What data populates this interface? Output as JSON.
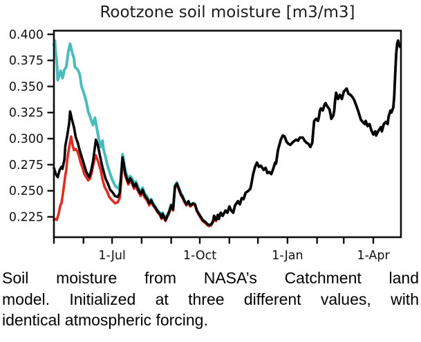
{
  "chart_data": {
    "type": "line",
    "title": "Rootzone soil moisture [m3/m3]",
    "xlabel": "",
    "ylabel": "",
    "grid": false,
    "legend_position": "none",
    "x_axis": {
      "unit": "days since 1-May",
      "domain_days": [
        0,
        364
      ],
      "tick_days": [
        0,
        31,
        61,
        92,
        123,
        153,
        184,
        214,
        245,
        276,
        304,
        335
      ],
      "labeled_ticks": [
        {
          "day": 61,
          "label": "1-Jul"
        },
        {
          "day": 153,
          "label": "1-Oct"
        },
        {
          "day": 245,
          "label": "1-Jan"
        },
        {
          "day": 335,
          "label": "1-Apr"
        }
      ]
    },
    "y_axis": {
      "unit": "m3/m3",
      "range": [
        0.2055,
        0.4035
      ],
      "ticks": [
        0.225,
        0.25,
        0.275,
        0.3,
        0.325,
        0.35,
        0.375,
        0.4
      ],
      "tick_labels": [
        "0.225",
        "0.250",
        "0.275",
        "0.300",
        "0.325",
        "0.350",
        "0.375",
        "0.400"
      ]
    },
    "series": [
      {
        "id": "teal",
        "color": "#49bdbb",
        "width": 4,
        "points": [
          [
            0,
            0.39
          ],
          [
            1,
            0.394
          ],
          [
            2,
            0.381
          ],
          [
            3,
            0.374
          ],
          [
            4,
            0.356
          ],
          [
            6,
            0.362
          ],
          [
            7,
            0.365
          ],
          [
            9,
            0.358
          ],
          [
            11,
            0.366
          ],
          [
            13,
            0.369
          ],
          [
            15,
            0.383
          ],
          [
            17,
            0.391
          ],
          [
            19,
            0.383
          ],
          [
            21,
            0.377
          ],
          [
            22,
            0.369
          ],
          [
            25,
            0.366
          ],
          [
            27,
            0.362
          ],
          [
            29,
            0.35
          ],
          [
            32,
            0.342
          ],
          [
            34,
            0.335
          ],
          [
            36,
            0.326
          ],
          [
            39,
            0.318
          ],
          [
            41,
            0.313
          ],
          [
            43,
            0.32
          ],
          [
            45,
            0.31
          ],
          [
            47,
            0.3
          ],
          [
            49,
            0.292
          ],
          [
            51,
            0.298
          ],
          [
            52,
            0.29
          ],
          [
            54,
            0.283
          ],
          [
            56,
            0.275
          ],
          [
            58,
            0.269
          ],
          [
            61,
            0.261
          ],
          [
            63,
            0.257
          ],
          [
            65,
            0.254
          ],
          [
            68,
            0.252
          ],
          [
            70,
            0.26
          ],
          [
            72,
            0.285
          ],
          [
            73,
            0.28
          ],
          [
            75,
            0.269
          ],
          [
            78,
            0.261
          ],
          [
            80,
            0.264
          ],
          [
            82,
            0.262
          ],
          [
            84,
            0.257
          ],
          [
            86,
            0.259
          ],
          [
            88,
            0.254
          ],
          [
            91,
            0.249
          ],
          [
            93,
            0.253
          ],
          [
            95,
            0.248
          ],
          [
            98,
            0.244
          ],
          [
            100,
            0.24
          ]
        ],
        "follows": "black",
        "follows_from_day": 102,
        "fringe_offset": 0.001,
        "fringe_until_day": 135
      },
      {
        "id": "red",
        "color": "#e02b20",
        "width": 3.6,
        "points": [
          [
            0,
            0.222
          ],
          [
            2,
            0.223
          ],
          [
            3,
            0.222
          ],
          [
            5,
            0.228
          ],
          [
            6,
            0.233
          ],
          [
            7,
            0.237
          ],
          [
            8,
            0.238
          ],
          [
            10,
            0.251
          ],
          [
            12,
            0.265
          ],
          [
            13,
            0.27
          ],
          [
            14,
            0.28
          ],
          [
            16,
            0.292
          ],
          [
            18,
            0.302
          ],
          [
            20,
            0.292
          ],
          [
            21,
            0.289
          ],
          [
            23,
            0.29
          ],
          [
            25,
            0.287
          ],
          [
            27,
            0.281
          ],
          [
            28,
            0.277
          ],
          [
            30,
            0.272
          ],
          [
            32,
            0.266
          ],
          [
            34,
            0.263
          ],
          [
            36,
            0.26
          ],
          [
            38,
            0.262
          ],
          [
            40,
            0.269
          ],
          [
            42,
            0.278
          ],
          [
            44,
            0.284
          ],
          [
            46,
            0.279
          ],
          [
            49,
            0.27
          ],
          [
            51,
            0.261
          ],
          [
            53,
            0.254
          ],
          [
            56,
            0.249
          ],
          [
            58,
            0.244
          ],
          [
            61,
            0.241
          ],
          [
            64,
            0.238
          ],
          [
            67,
            0.239
          ],
          [
            69,
            0.243
          ],
          [
            70,
            0.252
          ],
          [
            72,
            0.279
          ],
          [
            73,
            0.274
          ],
          [
            75,
            0.264
          ],
          [
            78,
            0.256
          ],
          [
            80,
            0.259
          ],
          [
            82,
            0.257
          ],
          [
            84,
            0.252
          ],
          [
            86,
            0.255
          ],
          [
            88,
            0.25
          ],
          [
            91,
            0.245
          ],
          [
            93,
            0.249
          ],
          [
            95,
            0.244
          ],
          [
            98,
            0.24
          ],
          [
            100,
            0.236
          ]
        ],
        "follows": "black",
        "follows_from_day": 102,
        "fringe_offset": -0.001,
        "fringe_until_day": 170
      },
      {
        "id": "black",
        "color": "#050505",
        "width": 3.6,
        "points": [
          [
            0,
            0.272
          ],
          [
            2,
            0.266
          ],
          [
            4,
            0.263
          ],
          [
            6,
            0.27
          ],
          [
            8,
            0.273
          ],
          [
            9,
            0.271
          ],
          [
            11,
            0.28
          ],
          [
            12,
            0.293
          ],
          [
            14,
            0.303
          ],
          [
            16,
            0.315
          ],
          [
            17,
            0.326
          ],
          [
            19,
            0.318
          ],
          [
            21,
            0.311
          ],
          [
            23,
            0.301
          ],
          [
            25,
            0.296
          ],
          [
            27,
            0.289
          ],
          [
            28,
            0.286
          ],
          [
            30,
            0.28
          ],
          [
            32,
            0.274
          ],
          [
            34,
            0.268
          ],
          [
            37,
            0.263
          ],
          [
            39,
            0.269
          ],
          [
            41,
            0.278
          ],
          [
            43,
            0.292
          ],
          [
            44,
            0.299
          ],
          [
            46,
            0.294
          ],
          [
            48,
            0.285
          ],
          [
            50,
            0.276
          ],
          [
            52,
            0.269
          ],
          [
            54,
            0.262
          ],
          [
            57,
            0.256
          ],
          [
            59,
            0.251
          ],
          [
            62,
            0.248
          ],
          [
            64,
            0.245
          ],
          [
            67,
            0.244
          ],
          [
            69,
            0.248
          ],
          [
            70,
            0.258
          ],
          [
            72,
            0.282
          ],
          [
            73,
            0.277
          ],
          [
            75,
            0.266
          ],
          [
            78,
            0.258
          ],
          [
            80,
            0.262
          ],
          [
            82,
            0.259
          ],
          [
            84,
            0.254
          ],
          [
            86,
            0.257
          ],
          [
            88,
            0.252
          ],
          [
            91,
            0.247
          ],
          [
            93,
            0.251
          ],
          [
            95,
            0.246
          ],
          [
            98,
            0.242
          ],
          [
            100,
            0.238
          ],
          [
            102,
            0.241
          ],
          [
            104,
            0.237
          ],
          [
            107,
            0.233
          ],
          [
            109,
            0.23
          ],
          [
            111,
            0.228
          ],
          [
            113,
            0.224
          ],
          [
            114,
            0.228
          ],
          [
            117,
            0.222
          ],
          [
            119,
            0.226
          ],
          [
            121,
            0.23
          ],
          [
            123,
            0.236
          ],
          [
            125,
            0.232
          ],
          [
            127,
            0.254
          ],
          [
            129,
            0.257
          ],
          [
            131,
            0.252
          ],
          [
            133,
            0.247
          ],
          [
            135,
            0.244
          ],
          [
            137,
            0.24
          ],
          [
            139,
            0.237
          ],
          [
            141,
            0.24
          ],
          [
            143,
            0.236
          ],
          [
            146,
            0.238
          ],
          [
            148,
            0.237
          ],
          [
            150,
            0.231
          ],
          [
            152,
            0.228
          ],
          [
            154,
            0.225
          ],
          [
            156,
            0.222
          ],
          [
            159,
            0.22
          ],
          [
            161,
            0.218
          ],
          [
            163,
            0.217
          ],
          [
            165,
            0.218
          ],
          [
            167,
            0.221
          ],
          [
            168,
            0.226
          ],
          [
            170,
            0.222
          ],
          [
            172,
            0.227
          ],
          [
            173,
            0.223
          ],
          [
            175,
            0.229
          ],
          [
            177,
            0.226
          ],
          [
            180,
            0.231
          ],
          [
            182,
            0.229
          ],
          [
            184,
            0.235
          ],
          [
            186,
            0.231
          ],
          [
            188,
            0.229
          ],
          [
            190,
            0.236
          ],
          [
            193,
            0.24
          ],
          [
            195,
            0.237
          ],
          [
            197,
            0.243
          ],
          [
            199,
            0.242
          ],
          [
            201,
            0.248
          ],
          [
            204,
            0.25
          ],
          [
            206,
            0.252
          ],
          [
            207,
            0.256
          ],
          [
            209,
            0.266
          ],
          [
            211,
            0.273
          ],
          [
            213,
            0.277
          ],
          [
            215,
            0.273
          ],
          [
            217,
            0.274
          ],
          [
            220,
            0.27
          ],
          [
            222,
            0.272
          ],
          [
            224,
            0.267
          ],
          [
            226,
            0.268
          ],
          [
            228,
            0.266
          ],
          [
            230,
            0.271
          ],
          [
            232,
            0.277
          ],
          [
            233,
            0.276
          ],
          [
            235,
            0.289
          ],
          [
            238,
            0.299
          ],
          [
            240,
            0.303
          ],
          [
            242,
            0.302
          ],
          [
            244,
            0.297
          ],
          [
            246,
            0.295
          ],
          [
            248,
            0.294
          ],
          [
            251,
            0.297
          ],
          [
            254,
            0.299
          ],
          [
            256,
            0.298
          ],
          [
            258,
            0.301
          ],
          [
            261,
            0.301
          ],
          [
            263,
            0.298
          ],
          [
            265,
            0.296
          ],
          [
            267,
            0.295
          ],
          [
            269,
            0.292
          ],
          [
            271,
            0.296
          ],
          [
            272,
            0.307
          ],
          [
            273,
            0.317
          ],
          [
            275,
            0.319
          ],
          [
            277,
            0.317
          ],
          [
            278,
            0.321
          ],
          [
            279,
            0.327
          ],
          [
            280,
            0.329
          ],
          [
            282,
            0.327
          ],
          [
            284,
            0.333
          ],
          [
            285,
            0.334
          ],
          [
            286,
            0.332
          ],
          [
            289,
            0.328
          ],
          [
            290,
            0.324
          ],
          [
            291,
            0.319
          ],
          [
            293,
            0.322
          ],
          [
            294,
            0.327
          ],
          [
            295,
            0.337
          ],
          [
            296,
            0.344
          ],
          [
            298,
            0.338
          ],
          [
            300,
            0.342
          ],
          [
            302,
            0.338
          ],
          [
            304,
            0.345
          ],
          [
            306,
            0.347
          ],
          [
            307,
            0.348
          ],
          [
            309,
            0.343
          ],
          [
            311,
            0.342
          ],
          [
            313,
            0.34
          ],
          [
            315,
            0.337
          ],
          [
            317,
            0.332
          ],
          [
            319,
            0.327
          ],
          [
            320,
            0.324
          ],
          [
            322,
            0.318
          ],
          [
            324,
            0.316
          ],
          [
            326,
            0.314
          ],
          [
            327,
            0.317
          ],
          [
            329,
            0.312
          ],
          [
            331,
            0.314
          ],
          [
            333,
            0.308
          ],
          [
            335,
            0.304
          ],
          [
            337,
            0.307
          ],
          [
            338,
            0.303
          ],
          [
            340,
            0.307
          ],
          [
            343,
            0.311
          ],
          [
            344,
            0.307
          ],
          [
            346,
            0.314
          ],
          [
            348,
            0.316
          ],
          [
            350,
            0.314
          ],
          [
            351,
            0.321
          ],
          [
            353,
            0.327
          ],
          [
            354,
            0.325
          ],
          [
            356,
            0.33
          ],
          [
            357,
            0.341
          ],
          [
            358,
            0.362
          ],
          [
            359,
            0.381
          ],
          [
            360,
            0.391
          ],
          [
            361,
            0.394
          ],
          [
            362,
            0.39
          ],
          [
            363,
            0.388
          ]
        ]
      }
    ]
  },
  "caption": {
    "lines": [
      "Soil moisture from NASA’s Catchment land",
      "model. Initialized at three different values, with",
      "identical atmospheric forcing."
    ]
  }
}
